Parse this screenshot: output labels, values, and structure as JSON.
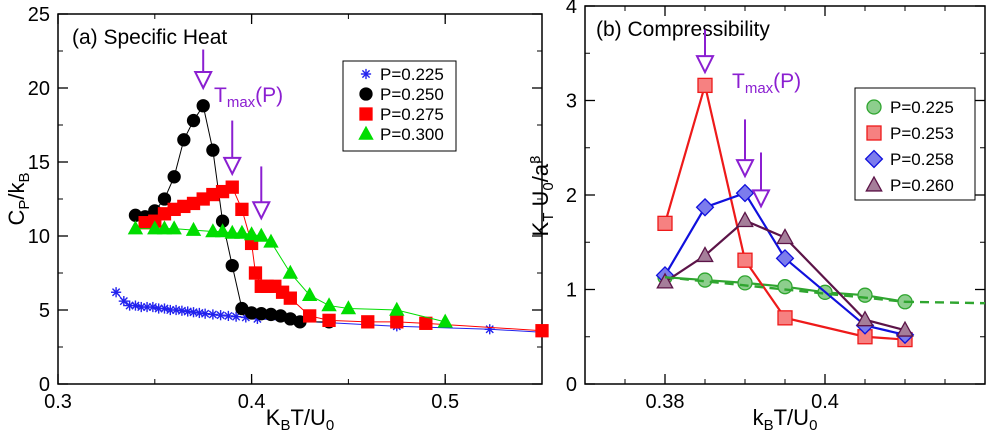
{
  "chart_data": [
    {
      "type": "line",
      "title": "(a) Specific Heat",
      "xlabel": "K_B T/U_0",
      "ylabel": "C_P/k_B",
      "xlim": [
        0.3,
        0.55
      ],
      "ylim": [
        0,
        25
      ],
      "xticks": [
        "0.3",
        "0.4",
        "0.5"
      ],
      "yticks": [
        "0",
        "5",
        "10",
        "15",
        "20",
        "25"
      ],
      "legend_position": "top-right",
      "annotation": "T_max(P)",
      "series": [
        {
          "name": "P=0.225",
          "marker": "star",
          "color": "#2222ee",
          "x": [
            0.33,
            0.334,
            0.337,
            0.34,
            0.343,
            0.346,
            0.349,
            0.352,
            0.355,
            0.358,
            0.361,
            0.364,
            0.367,
            0.37,
            0.373,
            0.376,
            0.38,
            0.384,
            0.388,
            0.392,
            0.397,
            0.403,
            0.475,
            0.523,
            0.55
          ],
          "y": [
            6.2,
            5.6,
            5.3,
            5.3,
            5.2,
            5.2,
            5.2,
            5.1,
            5.1,
            5.0,
            5.0,
            4.95,
            4.9,
            4.85,
            4.8,
            4.75,
            4.7,
            4.65,
            4.6,
            4.55,
            4.5,
            4.4,
            3.9,
            3.7,
            3.5
          ]
        },
        {
          "name": "P=0.250",
          "marker": "circle",
          "color": "#000000",
          "x": [
            0.34,
            0.345,
            0.35,
            0.355,
            0.36,
            0.365,
            0.37,
            0.375,
            0.38,
            0.385,
            0.39,
            0.395,
            0.4,
            0.405,
            0.41,
            0.415,
            0.42,
            0.425,
            0.44
          ],
          "y": [
            11.4,
            11.3,
            11.7,
            12.5,
            14.0,
            16.5,
            17.8,
            18.8,
            15.8,
            11.0,
            8.0,
            5.1,
            4.8,
            4.75,
            4.7,
            4.6,
            4.4,
            4.2,
            4.2
          ]
        },
        {
          "name": "P=0.275",
          "marker": "square",
          "color": "#ff0000",
          "x": [
            0.345,
            0.35,
            0.355,
            0.36,
            0.365,
            0.37,
            0.375,
            0.38,
            0.385,
            0.39,
            0.395,
            0.4,
            0.402,
            0.405,
            0.408,
            0.412,
            0.416,
            0.42,
            0.43,
            0.44,
            0.46,
            0.475,
            0.49,
            0.55
          ],
          "y": [
            10.9,
            11.0,
            11.5,
            11.8,
            12.0,
            12.2,
            12.5,
            12.8,
            13.0,
            13.3,
            11.8,
            9.5,
            7.5,
            6.6,
            6.6,
            6.6,
            6.2,
            5.8,
            4.6,
            4.3,
            4.2,
            4.2,
            4.1,
            3.6
          ]
        },
        {
          "name": "P=0.300",
          "marker": "triangle",
          "color": "#00dd00",
          "x": [
            0.34,
            0.35,
            0.355,
            0.36,
            0.37,
            0.38,
            0.385,
            0.39,
            0.395,
            0.4,
            0.405,
            0.41,
            0.42,
            0.43,
            0.44,
            0.45,
            0.475,
            0.5
          ],
          "y": [
            10.5,
            10.5,
            10.5,
            10.5,
            10.4,
            10.3,
            10.3,
            10.2,
            10.2,
            10.1,
            10.0,
            9.6,
            7.5,
            6.0,
            5.3,
            5.1,
            5.0,
            4.2
          ]
        }
      ]
    },
    {
      "type": "line",
      "title": "(b) Compressibility",
      "xlabel": "k_B T/U_0",
      "ylabel": "K_T U_0/a^3",
      "xlim": [
        0.37,
        0.42
      ],
      "ylim": [
        0,
        4
      ],
      "xticks": [
        "0.38",
        "0.4"
      ],
      "yticks": [
        "0",
        "1",
        "2",
        "3",
        "4"
      ],
      "legend_position": "center-right",
      "annotation": "T_max(P)",
      "series": [
        {
          "name": "P=0.225",
          "marker": "circle",
          "color": "#2fa52f",
          "x": [
            0.38,
            0.385,
            0.39,
            0.395,
            0.4,
            0.405,
            0.41
          ],
          "y": [
            1.13,
            1.1,
            1.07,
            1.03,
            0.97,
            0.94,
            0.87
          ]
        },
        {
          "name": "P=0.253",
          "marker": "square",
          "color": "#ee1a1a",
          "x": [
            0.38,
            0.385,
            0.39,
            0.395,
            0.405,
            0.41
          ],
          "y": [
            1.7,
            3.16,
            1.31,
            0.7,
            0.5,
            0.47
          ]
        },
        {
          "name": "P=0.258",
          "marker": "diamond",
          "color": "#1010dd",
          "x": [
            0.38,
            0.385,
            0.39,
            0.395,
            0.405,
            0.41
          ],
          "y": [
            1.15,
            1.87,
            2.02,
            1.33,
            0.62,
            0.52
          ]
        },
        {
          "name": "P=0.260",
          "marker": "triangle",
          "color": "#5c1448",
          "x": [
            0.38,
            0.385,
            0.39,
            0.395,
            0.405,
            0.41
          ],
          "y": [
            1.08,
            1.36,
            1.73,
            1.55,
            0.68,
            0.57
          ]
        }
      ]
    }
  ]
}
